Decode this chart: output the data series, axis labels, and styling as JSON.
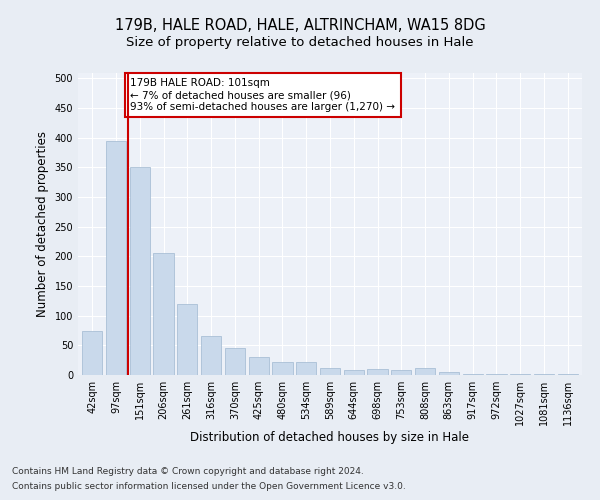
{
  "title1": "179B, HALE ROAD, HALE, ALTRINCHAM, WA15 8DG",
  "title2": "Size of property relative to detached houses in Hale",
  "xlabel": "Distribution of detached houses by size in Hale",
  "ylabel": "Number of detached properties",
  "categories": [
    "42sqm",
    "97sqm",
    "151sqm",
    "206sqm",
    "261sqm",
    "316sqm",
    "370sqm",
    "425sqm",
    "480sqm",
    "534sqm",
    "589sqm",
    "644sqm",
    "698sqm",
    "753sqm",
    "808sqm",
    "863sqm",
    "917sqm",
    "972sqm",
    "1027sqm",
    "1081sqm",
    "1136sqm"
  ],
  "values": [
    75,
    395,
    350,
    205,
    120,
    65,
    45,
    30,
    22,
    22,
    12,
    8,
    10,
    8,
    12,
    5,
    2,
    2,
    2,
    2,
    2
  ],
  "bar_color": "#c9d9eb",
  "bar_edge_color": "#a0b8d0",
  "vline_x": 1.5,
  "vline_color": "#cc0000",
  "annotation_text": "179B HALE ROAD: 101sqm\n← 7% of detached houses are smaller (96)\n93% of semi-detached houses are larger (1,270) →",
  "annotation_box_color": "#ffffff",
  "annotation_border_color": "#cc0000",
  "ylim": [
    0,
    510
  ],
  "yticks": [
    0,
    50,
    100,
    150,
    200,
    250,
    300,
    350,
    400,
    450,
    500
  ],
  "background_color": "#e8edf4",
  "plot_bg_color": "#edf1f8",
  "footer_line1": "Contains HM Land Registry data © Crown copyright and database right 2024.",
  "footer_line2": "Contains public sector information licensed under the Open Government Licence v3.0.",
  "title_fontsize": 10.5,
  "subtitle_fontsize": 9.5,
  "axis_label_fontsize": 8.5,
  "tick_fontsize": 7,
  "footer_fontsize": 6.5,
  "annot_fontsize": 7.5
}
